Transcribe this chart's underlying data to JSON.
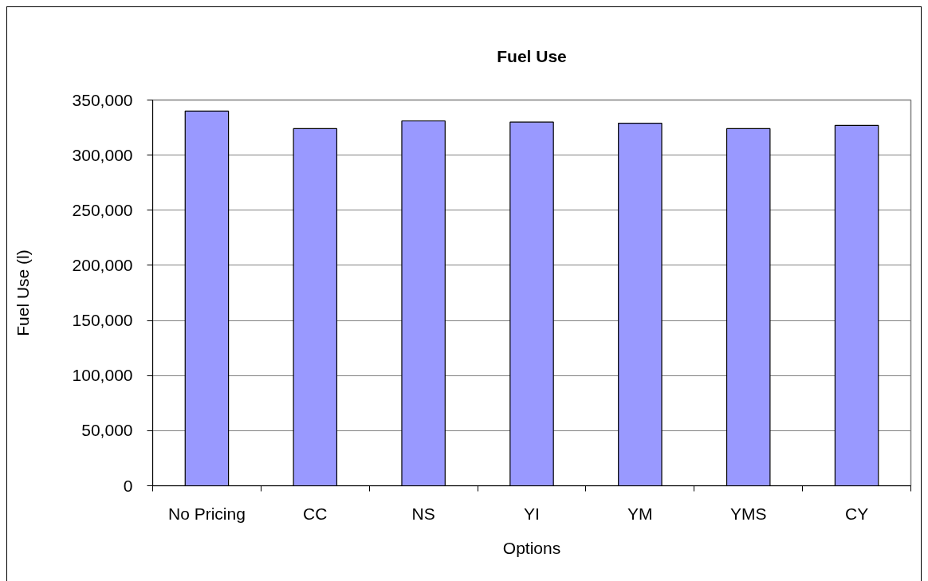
{
  "chart_data": {
    "type": "bar",
    "title": "Fuel Use",
    "xlabel": "Options",
    "ylabel": "Fuel Use (l)",
    "categories": [
      "No Pricing",
      "CC",
      "NS",
      "YI",
      "YM",
      "YMS",
      "CY"
    ],
    "values": [
      340000,
      324000,
      331000,
      330000,
      329000,
      324000,
      327000
    ],
    "color": "#9999ff",
    "ylim": [
      0,
      350000
    ],
    "yticks": [
      0,
      {
        "value": 50000,
        "label": "50,000"
      },
      {
        "value": 100000,
        "label": "100,000"
      },
      {
        "value": 150000,
        "label": "150,000"
      },
      {
        "value": 200000,
        "label": "200,000"
      },
      {
        "value": 250000,
        "label": "250,000"
      },
      {
        "value": 300000,
        "label": "300,000"
      },
      {
        "value": 350000,
        "label": "350,000"
      }
    ],
    "grid": "y"
  }
}
